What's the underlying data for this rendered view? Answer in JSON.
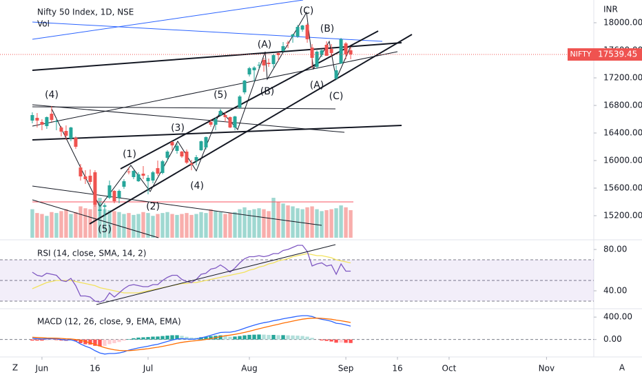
{
  "chart_data": [
    {
      "type": "candlestick",
      "title": "Nifty 50 Index, 1D, NSE",
      "symbol": "NIFTY",
      "currency": "INR",
      "up_color": "#26a69a",
      "down_color": "#ef5350",
      "ohlc": [
        [
          16580,
          16700,
          16540,
          16660
        ],
        [
          16620,
          16690,
          16480,
          16580
        ],
        [
          16560,
          16600,
          16440,
          16520
        ],
        [
          16500,
          16640,
          16460,
          16630
        ],
        [
          16680,
          16790,
          16560,
          16590
        ],
        [
          16560,
          16610,
          16440,
          16570
        ],
        [
          16480,
          16500,
          16350,
          16420
        ],
        [
          16430,
          16510,
          16300,
          16360
        ],
        [
          16320,
          16490,
          16280,
          16480
        ],
        [
          16330,
          16350,
          16170,
          16200
        ],
        [
          15900,
          15950,
          15710,
          15770
        ],
        [
          15770,
          15860,
          15660,
          15730
        ],
        [
          15780,
          15870,
          15650,
          15690
        ],
        [
          15830,
          15860,
          15330,
          15360
        ],
        [
          15270,
          15400,
          15180,
          15290
        ],
        [
          15330,
          15380,
          15190,
          15350
        ],
        [
          15460,
          15710,
          15440,
          15640
        ],
        [
          15560,
          15570,
          15380,
          15410
        ],
        [
          15460,
          15580,
          15380,
          15560
        ],
        [
          15620,
          15730,
          15590,
          15700
        ],
        [
          15840,
          15900,
          15800,
          15830
        ],
        [
          15760,
          15860,
          15730,
          15850
        ],
        [
          15700,
          15830,
          15690,
          15800
        ],
        [
          15810,
          15920,
          15730,
          15780
        ],
        [
          15700,
          15790,
          15510,
          15750
        ],
        [
          15710,
          15850,
          15670,
          15830
        ],
        [
          15890,
          16000,
          15780,
          15810
        ],
        [
          15820,
          16010,
          15800,
          15990
        ],
        [
          16040,
          16150,
          15990,
          16130
        ],
        [
          16270,
          16280,
          16150,
          16220
        ],
        [
          16140,
          16250,
          16100,
          16215
        ],
        [
          16130,
          16140,
          16040,
          16060
        ],
        [
          16130,
          16160,
          15950,
          15970
        ],
        [
          15960,
          16010,
          15860,
          15940
        ],
        [
          16000,
          16080,
          15930,
          16050
        ],
        [
          16150,
          16290,
          16140,
          16280
        ],
        [
          16190,
          16350,
          16160,
          16340
        ],
        [
          16560,
          16600,
          16490,
          16520
        ],
        [
          16520,
          16630,
          16440,
          16600
        ],
        [
          16660,
          16750,
          16640,
          16720
        ],
        [
          16660,
          16700,
          16560,
          16630
        ],
        [
          16630,
          16640,
          16470,
          16480
        ],
        [
          16480,
          16650,
          16440,
          16640
        ],
        [
          16770,
          16950,
          16750,
          16930
        ],
        [
          16990,
          17170,
          16960,
          17160
        ],
        [
          17250,
          17360,
          17220,
          17340
        ],
        [
          17310,
          17370,
          17150,
          17350
        ],
        [
          17390,
          17430,
          17330,
          17390
        ],
        [
          17460,
          17490,
          17290,
          17380
        ],
        [
          17420,
          17480,
          17360,
          17400
        ],
        [
          17400,
          17550,
          17350,
          17530
        ],
        [
          17560,
          17570,
          17440,
          17530
        ],
        [
          17590,
          17720,
          17580,
          17660
        ],
        [
          17710,
          17740,
          17630,
          17700
        ],
        [
          17800,
          17840,
          17710,
          17830
        ],
        [
          17800,
          17970,
          17780,
          17940
        ],
        [
          17900,
          17970,
          17870,
          17960
        ],
        [
          17970,
          17990,
          17710,
          17760
        ],
        [
          17640,
          17690,
          17340,
          17490
        ],
        [
          17360,
          17600,
          17330,
          17580
        ],
        [
          17530,
          17620,
          17500,
          17600
        ],
        [
          17680,
          17730,
          17520,
          17520
        ],
        [
          17620,
          17690,
          17510,
          17560
        ],
        [
          17190,
          17380,
          17170,
          17310
        ],
        [
          17410,
          17780,
          17400,
          17760
        ],
        [
          17700,
          17720,
          17470,
          17540
        ],
        [
          17600,
          17650,
          17470,
          17539.45
        ]
      ],
      "volume": {
        "name": "Vol",
        "up_color": "#9fd8d1",
        "down_color": "#f8aeac",
        "ylim": [
          0,
          2500
        ],
        "values": [
          300,
          260,
          250,
          230,
          270,
          260,
          280,
          300,
          250,
          270,
          330,
          310,
          300,
          360,
          420,
          300,
          290,
          280,
          270,
          250,
          260,
          240,
          250,
          270,
          260,
          230,
          250,
          260,
          270,
          250,
          240,
          250,
          260,
          240,
          250,
          270,
          260,
          300,
          280,
          270,
          250,
          260,
          270,
          300,
          320,
          290,
          300,
          310,
          300,
          280,
          420,
          380,
          360,
          340,
          330,
          310,
          300,
          320,
          330,
          300,
          280,
          290,
          300,
          310,
          340,
          320,
          290
        ]
      },
      "ylim": [
        14880,
        18330
      ],
      "yticks": [
        {
          "value": 18000,
          "label": "18000.00"
        },
        {
          "value": 17600,
          "label": "17600.00"
        },
        {
          "value": 17200,
          "label": "17200.00"
        },
        {
          "value": 16800,
          "label": "16800.00"
        },
        {
          "value": 16400,
          "label": "16400.00"
        },
        {
          "value": 16000,
          "label": "16000.00"
        },
        {
          "value": 15600,
          "label": "15600.00"
        },
        {
          "value": 15200,
          "label": "15200.00"
        }
      ],
      "xlim": [
        -6.7,
        116.4
      ],
      "xticks": [
        {
          "value": 2,
          "label": "Jun"
        },
        {
          "value": 13,
          "label": "16"
        },
        {
          "value": 24,
          "label": "Jul"
        },
        {
          "value": 45,
          "label": "Aug"
        },
        {
          "value": 65,
          "label": "Sep"
        },
        {
          "value": 75.7,
          "label": "16"
        },
        {
          "value": 86.4,
          "label": "Oct"
        },
        {
          "value": 106.6,
          "label": "Nov"
        }
      ],
      "annotations": [
        "(4)",
        "(5)",
        "(1)",
        "(2)",
        "(3)",
        "(4)",
        "(5)",
        "(A)",
        "(B)",
        "(C)",
        "(B)",
        "(A)",
        "(C)"
      ]
    },
    {
      "type": "line",
      "title": "RSI (14, close, SMA, 14, 2)",
      "band_color": "#7e57c2",
      "series": [
        {
          "color": "#7e57c2",
          "values": [
            58,
            55,
            54,
            57,
            56,
            55,
            50,
            49,
            52,
            45,
            35,
            35,
            34,
            30,
            29,
            31,
            38,
            34,
            38,
            42,
            45,
            46,
            45,
            44,
            44,
            46,
            46,
            50,
            53,
            55,
            55,
            51,
            49,
            48,
            51,
            56,
            57,
            61,
            62,
            65,
            62,
            58,
            62,
            67,
            71,
            73,
            73,
            74,
            73,
            74,
            76,
            76,
            79,
            80,
            82,
            84,
            84,
            78,
            64,
            66,
            67,
            64,
            65,
            56,
            66,
            59,
            59
          ]
        },
        {
          "color": "#f2e25c",
          "values": [
            42,
            44,
            46,
            48,
            49,
            50,
            50,
            50,
            50,
            49,
            48,
            47,
            46,
            45,
            43,
            42,
            41,
            40,
            39,
            38,
            38,
            38,
            38,
            39,
            40,
            41,
            42,
            43,
            44,
            45,
            46,
            47,
            47,
            48,
            48,
            49,
            50,
            51,
            52,
            53,
            54,
            55,
            56,
            57,
            58,
            60,
            61,
            63,
            64,
            66,
            67,
            69,
            70,
            71,
            73,
            74,
            75,
            76,
            75,
            74,
            74,
            73,
            72,
            70,
            69,
            68,
            67
          ]
        }
      ],
      "ylim": [
        24,
        86.7
      ],
      "yticks": [
        {
          "value": 80,
          "label": "80.00"
        },
        {
          "value": 40,
          "label": "40.00"
        }
      ],
      "levels": [
        70,
        50,
        30
      ]
    },
    {
      "type": "macd",
      "title": "MACD (12, 26, close, 9, EMA, EMA)",
      "series": [
        {
          "color": "#2962ff",
          "values": [
            20,
            15,
            10,
            12,
            15,
            12,
            0,
            -10,
            -5,
            -30,
            -80,
            -120,
            -150,
            -200,
            -240,
            -260,
            -250,
            -250,
            -240,
            -220,
            -190,
            -170,
            -150,
            -135,
            -120,
            -100,
            -85,
            -60,
            -35,
            -10,
            10,
            15,
            10,
            5,
            10,
            30,
            50,
            75,
            100,
            125,
            130,
            130,
            145,
            170,
            200,
            230,
            255,
            280,
            300,
            315,
            335,
            350,
            370,
            385,
            400,
            415,
            425,
            425,
            410,
            380,
            360,
            345,
            325,
            290,
            280,
            260,
            240
          ]
        },
        {
          "color": "#ff6d00",
          "values": [
            40,
            35,
            30,
            27,
            25,
            23,
            19,
            13,
            9,
            1,
            -15,
            -36,
            -59,
            -87,
            -118,
            -146,
            -167,
            -184,
            -195,
            -200,
            -198,
            -193,
            -184,
            -174,
            -164,
            -151,
            -138,
            -122,
            -105,
            -86,
            -67,
            -51,
            -38,
            -29,
            -21,
            -11,
            1,
            16,
            33,
            51,
            67,
            79,
            92,
            108,
            126,
            147,
            169,
            191,
            213,
            233,
            253,
            272,
            292,
            310,
            328,
            346,
            362,
            374,
            381,
            381,
            377,
            370,
            361,
            347,
            334,
            319,
            303
          ]
        }
      ],
      "histogram": {
        "colors": [
          "#26a69a",
          "#b2dfdb",
          "#ff5252",
          "#ffcdd2"
        ],
        "values": [
          -20,
          -20,
          -20,
          -15,
          -10,
          -11,
          -19,
          -23,
          -14,
          -31,
          -65,
          -84,
          -91,
          -113,
          -122,
          -114,
          -83,
          -66,
          -45,
          -20,
          8,
          23,
          34,
          39,
          44,
          51,
          53,
          62,
          70,
          76,
          77,
          66,
          48,
          34,
          31,
          41,
          49,
          59,
          67,
          74,
          63,
          51,
          53,
          62,
          74,
          83,
          86,
          89,
          87,
          82,
          82,
          78,
          78,
          75,
          72,
          69,
          63,
          51,
          29,
          -1,
          -17,
          -25,
          -36,
          -57,
          -54,
          -59,
          -63
        ]
      },
      "ylim": [
        -287,
        525
      ],
      "yticks": [
        {
          "value": 400,
          "label": "400.00"
        },
        {
          "value": 0,
          "label": "0.00"
        }
      ],
      "levels": [
        0
      ]
    }
  ],
  "toolbar": {
    "left": "Z",
    "right": "A"
  }
}
